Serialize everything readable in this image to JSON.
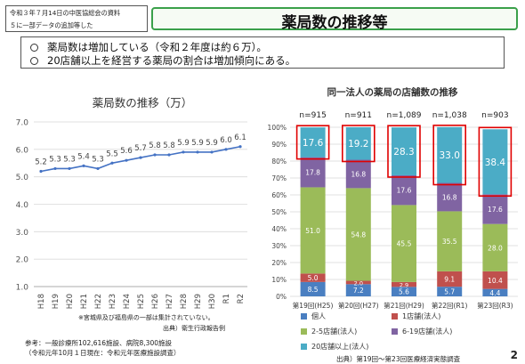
{
  "header": {
    "note_line1": "令和３年７月14日の中医協総会の資料",
    "note_line2": "５に一部データの追加等した",
    "title": "薬局数の推移等"
  },
  "bullets": [
    "薬局数は増加している（令和２年度は約６万）。",
    "20店舗以上を経営する薬局の割合は増加傾向にある。"
  ],
  "colors": {
    "line": "#4472c4",
    "individual": "#4a7fc1",
    "stores_1": "#c0504d",
    "stores_2_5": "#9bbb59",
    "stores_6_19": "#8064a2",
    "stores_20plus": "#4bacc6",
    "highlight": "#e00000",
    "title_border": "#3aa04a"
  },
  "left_footnotes": {
    "note": "※宮城県及び福島県の一部は集計されていない。",
    "source": "出典）衛生行政報告例",
    "ref_line1": "参考：一般診療所102,616施設、病院8,300施設",
    "ref_line2": "（令和元年10月１日現在：令和元年医療施設調査）"
  },
  "right_source": "出典）第19回～第23回医療経済実態調査",
  "page_number": "2",
  "chart_data": [
    {
      "type": "line",
      "title": "薬局数の推移（万）",
      "categories": [
        "H18",
        "H19",
        "H20",
        "H21",
        "H22",
        "H23",
        "H24",
        "H25",
        "H26",
        "H27",
        "H28",
        "H29",
        "H30",
        "R1",
        "R2"
      ],
      "values": [
        5.2,
        5.3,
        5.3,
        5.4,
        5.3,
        5.5,
        5.6,
        5.7,
        5.8,
        5.8,
        5.9,
        5.9,
        5.9,
        6.0,
        6.1
      ],
      "labels": [
        "5.2",
        "5.3",
        "5.3",
        "5.4",
        "5.3",
        "5.5",
        "5.6",
        "5.7",
        "5.8",
        "5.8",
        "5.9",
        "5.9",
        "5.9",
        "6.0",
        "6.1"
      ],
      "yticks": [
        "1.0",
        "2.0",
        "3.0",
        "4.0",
        "5.0",
        "6.0",
        "7.0"
      ],
      "ylim": [
        1.0,
        7.0
      ],
      "grid": true
    },
    {
      "type": "bar",
      "stacked": true,
      "title": "同一法人の薬局の店舗数の推移",
      "categories": [
        "第19回(H25)",
        "第20回(H27)",
        "第21回(H29)",
        "第22回(R1)",
        "第23回(R3)"
      ],
      "n_labels": [
        "n=915",
        "n=911",
        "n=1,089",
        "n=1,038",
        "n=903"
      ],
      "series": [
        {
          "name": "個人",
          "values": [
            8.5,
            7.2,
            5.6,
            5.7,
            4.4
          ],
          "labels": [
            "8.5",
            "7.2",
            "5.6",
            "5.7",
            "4.4"
          ]
        },
        {
          "name": "1店舗(法人)",
          "values": [
            5.0,
            2.0,
            2.9,
            9.1,
            10.4
          ],
          "labels": [
            "5.0",
            "2.0",
            "2.9",
            "9.1",
            "10.4"
          ]
        },
        {
          "name": "2-5店舗(法人)",
          "values": [
            51.0,
            54.8,
            45.5,
            35.5,
            28.0
          ],
          "labels": [
            "51.0",
            "54.8",
            "45.5",
            "35.5",
            "28.0"
          ]
        },
        {
          "name": "6-19店舗(法人)",
          "values": [
            17.8,
            16.8,
            17.6,
            16.8,
            17.6
          ],
          "labels": [
            "17.8",
            "16.8",
            "17.6",
            "16.8",
            "17.6"
          ]
        },
        {
          "name": "20店舗以上(法人)",
          "values": [
            17.6,
            19.2,
            28.3,
            33.0,
            38.4
          ],
          "labels": [
            "17.6",
            "19.2",
            "28.3",
            "33.0",
            "38.4"
          ]
        }
      ],
      "yticks": [
        "0%",
        "10%",
        "20%",
        "30%",
        "40%",
        "50%",
        "60%",
        "70%",
        "80%",
        "90%",
        "100%"
      ],
      "ylim": [
        0,
        100
      ],
      "legend": "bottom"
    }
  ]
}
